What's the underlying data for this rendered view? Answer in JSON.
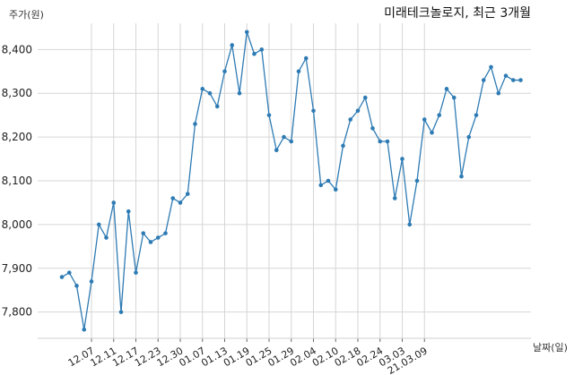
{
  "chart_data": {
    "type": "line",
    "title": "미래테크놀로지, 최근 3개월",
    "ylabel": "주가(원)",
    "xlabel": "날짜(일)",
    "ylim": [
      7740,
      8460
    ],
    "yticks": [
      7800,
      7900,
      8000,
      8100,
      8200,
      8300,
      8400
    ],
    "ytick_labels": [
      "7,800",
      "7,900",
      "8,000",
      "8,100",
      "8,200",
      "8,300",
      "8,400"
    ],
    "xtick_labels": [
      "12.07",
      "12.11",
      "12.17",
      "12.23",
      "12.30",
      "01.07",
      "01.13",
      "01.19",
      "01.25",
      "01.29",
      "02.04",
      "02.10",
      "02.18",
      "02.24",
      "03.03",
      "21.03.09"
    ],
    "xtick_positions": [
      4,
      7,
      10,
      13,
      16,
      19,
      22,
      25,
      28,
      31,
      34,
      37,
      40,
      43,
      46,
      49
    ],
    "grid": true,
    "color": "#2e7bb4",
    "series": [
      {
        "values": [
          7880,
          7890,
          7860,
          7760,
          7870,
          8000,
          7970,
          8050,
          7800,
          8030,
          7890,
          7980,
          7960,
          7970,
          7980,
          8060,
          8050,
          8070,
          8230,
          8310,
          8300,
          8270,
          8350,
          8410,
          8300,
          8440,
          8390,
          8400,
          8250,
          8170,
          8200,
          8190,
          8350,
          8380,
          8260,
          8090,
          8100,
          8080,
          8180,
          8240,
          8260,
          8290,
          8220,
          8190,
          8190,
          8060,
          8150,
          8000,
          8100,
          8240,
          8210,
          8250,
          8310,
          8290,
          8110,
          8200,
          8250,
          8330,
          8360,
          8300,
          8340,
          8330,
          8330
        ]
      }
    ]
  }
}
